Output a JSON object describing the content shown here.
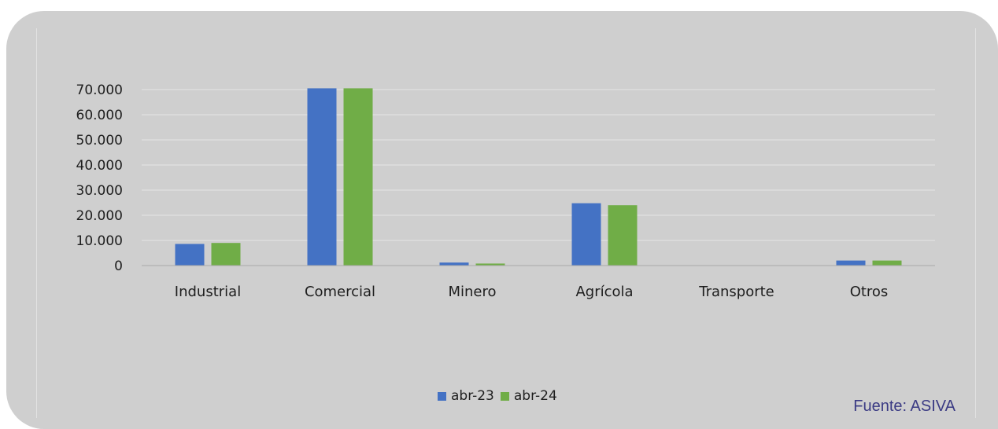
{
  "chart_data": {
    "type": "bar",
    "categories": [
      "Industrial",
      "Comercial",
      "Minero",
      "Agrícola",
      "Transporte",
      "Otros"
    ],
    "series": [
      {
        "name": "abr-23",
        "color": "#4472c4",
        "values": [
          8600,
          70500,
          1200,
          24800,
          0,
          2000
        ]
      },
      {
        "name": "abr-24",
        "color": "#70ad47",
        "values": [
          9000,
          70500,
          800,
          24000,
          0,
          2000
        ]
      }
    ],
    "yticks": [
      "0",
      "10.000",
      "20.000",
      "30.000",
      "40.000",
      "50.000",
      "60.000",
      "70.000"
    ],
    "ylim": [
      0,
      70000
    ],
    "grid": true,
    "legend": "bottom-center"
  },
  "source": "Fuente: ASIVA"
}
